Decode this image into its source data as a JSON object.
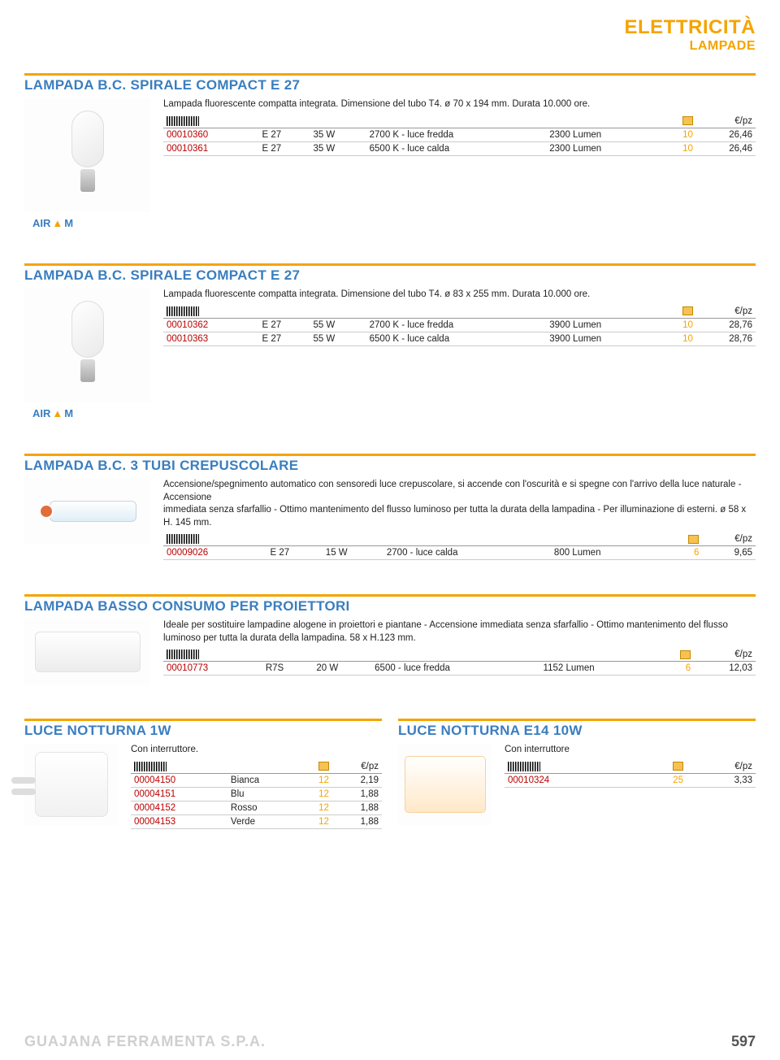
{
  "page": {
    "category": "ELETTRICITÀ",
    "subcategory": "LAMPADE",
    "footer_company": "GUAJANA FERRAMENTA S.P.A.",
    "page_number": "597"
  },
  "brand": "AIRAM",
  "headers": {
    "euro_pz": "€/pz"
  },
  "sections": [
    {
      "id": "s1",
      "title": "LAMPADA B.C. SPIRALE COMPACT E 27",
      "desc": "Lampada fluorescente compatta integrata. Dimensione del tubo T4. ø 70 x 194 mm. Durata 10.000 ore.",
      "show_brand": true,
      "img": "spiral",
      "rows": [
        {
          "code": "00010360",
          "c1": "E 27",
          "c2": "35 W",
          "c3": "2700 K - luce fredda",
          "c4": "2300 Lumen",
          "qty": "10",
          "price": "26,46"
        },
        {
          "code": "00010361",
          "c1": "E 27",
          "c2": "35 W",
          "c3": "6500 K - luce calda",
          "c4": "2300 Lumen",
          "qty": "10",
          "price": "26,46"
        }
      ]
    },
    {
      "id": "s2",
      "title": "LAMPADA B.C. SPIRALE COMPACT E 27",
      "desc": "Lampada fluorescente compatta integrata. Dimensione del tubo T4. ø 83 x 255 mm. Durata 10.000 ore.",
      "show_brand": true,
      "img": "spiral",
      "rows": [
        {
          "code": "00010362",
          "c1": "E 27",
          "c2": "55 W",
          "c3": "2700 K - luce fredda",
          "c4": "3900 Lumen",
          "qty": "10",
          "price": "28,76"
        },
        {
          "code": "00010363",
          "c1": "E 27",
          "c2": "55 W",
          "c3": "6500 K - luce calda",
          "c4": "3900 Lumen",
          "qty": "10",
          "price": "28,76"
        }
      ]
    },
    {
      "id": "s3",
      "title": "LAMPADA B.C. 3 TUBI CREPUSCOLARE",
      "desc": "Accensione/spegnimento automatico con sensoredi luce crepuscolare, si accende con l'oscurità e si spegne con l'arrivo della luce naturale - Accensione\nimmediata senza sfarfallio - Ottimo mantenimento del flusso luminoso per tutta la durata della lampadina - Per illuminazione di esterni. ø 58 x H. 145 mm.",
      "show_brand": false,
      "img": "tube",
      "img_short": true,
      "rows": [
        {
          "code": "00009026",
          "c1": "E 27",
          "c2": "15 W",
          "c3": "2700 - luce calda",
          "c4": "800 Lumen",
          "qty": "6",
          "price": "9,65"
        }
      ]
    },
    {
      "id": "s4",
      "title": "LAMPADA BASSO CONSUMO PER PROIETTORI",
      "desc": "Ideale per sostituire lampadine alogene in proiettori e piantane - Accensione immediata senza sfarfallio - Ottimo mantenimento del flusso luminoso per tutta la durata della lampadina. 58 x H.123 mm.",
      "show_brand": false,
      "img": "flat",
      "img_short": true,
      "rows": [
        {
          "code": "00010773",
          "c1": "R7S",
          "c2": "20 W",
          "c3": "6500 - luce fredda",
          "c4": "1152 Lumen",
          "qty": "6",
          "price": "12,03"
        }
      ]
    }
  ],
  "bottom": {
    "left": {
      "title": "LUCE NOTTURNA 1W",
      "desc": "Con interruttore.",
      "img": "plug",
      "rows": [
        {
          "code": "00004150",
          "c1": "Bianca",
          "qty": "12",
          "price": "2,19"
        },
        {
          "code": "00004151",
          "c1": "Blu",
          "qty": "12",
          "price": "1,88"
        },
        {
          "code": "00004152",
          "c1": "Rosso",
          "qty": "12",
          "price": "1,88"
        },
        {
          "code": "00004153",
          "c1": "Verde",
          "qty": "12",
          "price": "1,88"
        }
      ]
    },
    "right": {
      "title": "LUCE NOTTURNA E14 10W",
      "desc": "Con interruttore",
      "img": "night",
      "rows": [
        {
          "code": "00010324",
          "qty": "25",
          "price": "3,33"
        }
      ]
    }
  },
  "colors": {
    "accent_orange": "#f5a400",
    "title_blue": "#3a7ebf",
    "code_red": "#b00000",
    "rule_grey": "#999999"
  }
}
